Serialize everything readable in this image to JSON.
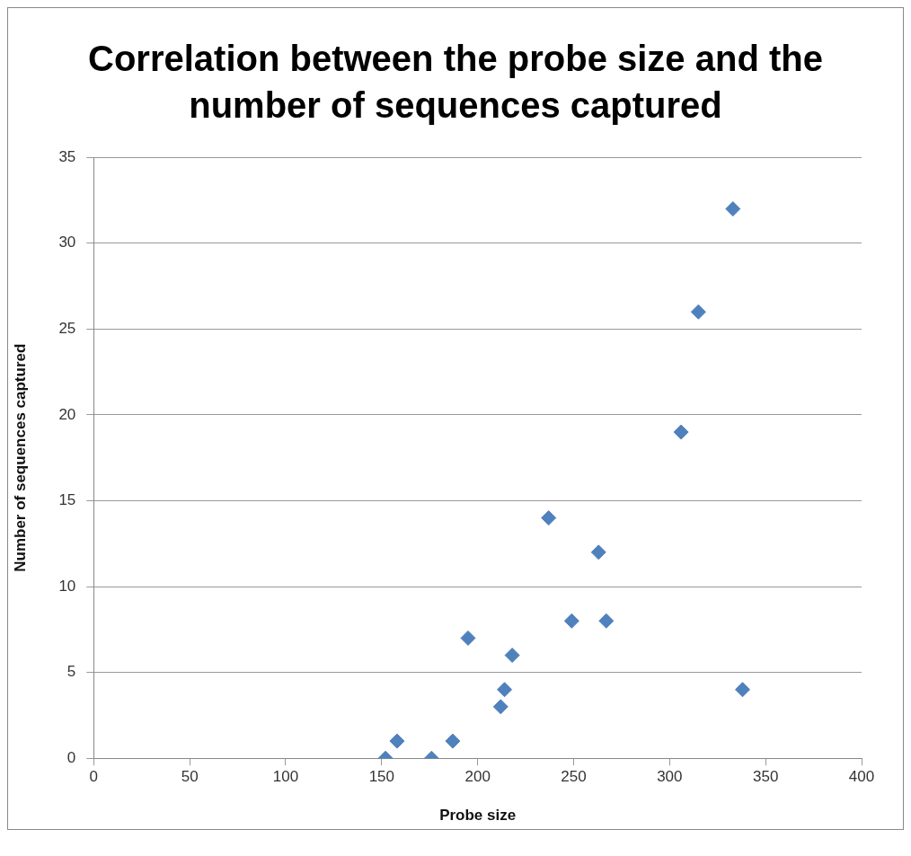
{
  "chart_data": {
    "type": "scatter",
    "title": "Correlation between the probe size and the number of sequences captured",
    "xlabel": "Probe size",
    "ylabel": "Number of sequences captured",
    "x": [
      152,
      158,
      176,
      187,
      195,
      212,
      214,
      218,
      237,
      249,
      263,
      267,
      306,
      315,
      333,
      338
    ],
    "values": [
      0,
      1,
      0,
      1,
      7,
      3,
      4,
      6,
      14,
      8,
      12,
      8,
      19,
      26,
      32,
      4
    ],
    "color": "#4f81bd",
    "marker": "diamond",
    "xlim": [
      0,
      400
    ],
    "xticks": [
      0,
      50,
      100,
      150,
      200,
      250,
      300,
      350,
      400
    ],
    "ylim": [
      0,
      35
    ],
    "yticks": [
      0,
      5,
      10,
      15,
      20,
      25,
      30,
      35
    ],
    "grid": "y",
    "legend": false
  }
}
